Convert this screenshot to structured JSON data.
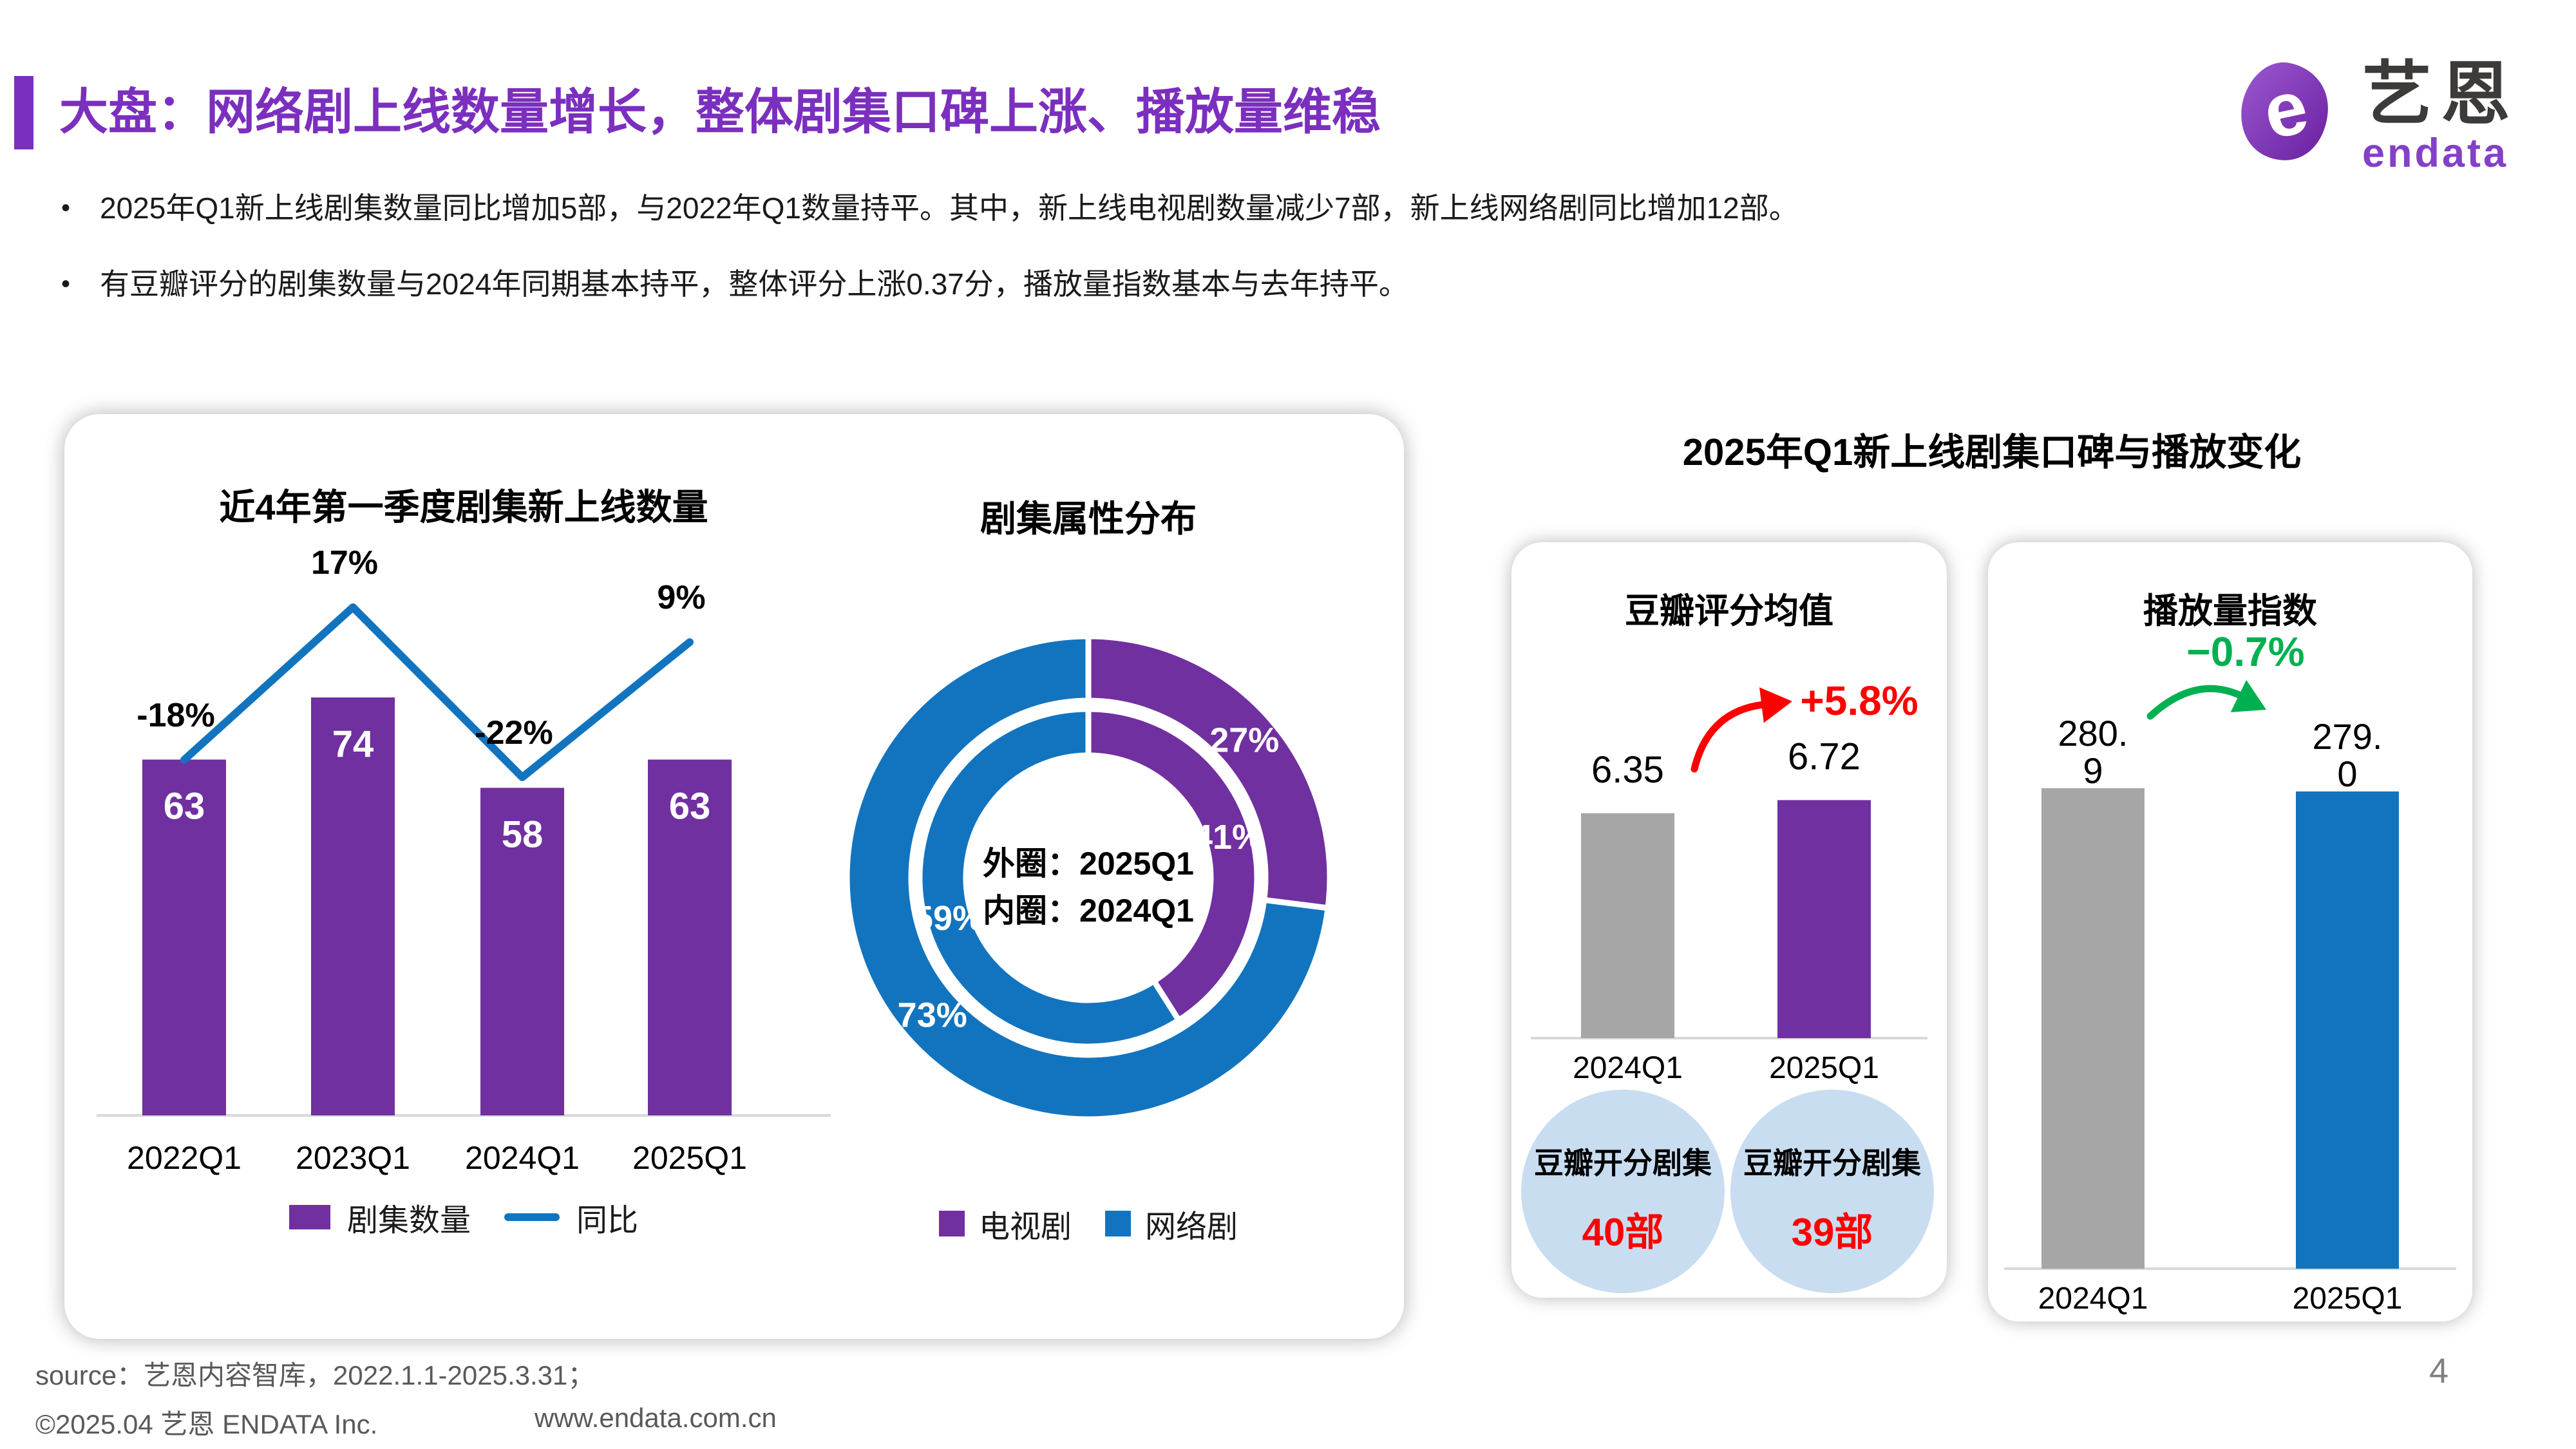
{
  "page": {
    "title": "大盘：网络剧上线数量增长，整体剧集口碑上涨、播放量维稳",
    "page_number": "4"
  },
  "logo": {
    "zh": "艺恩",
    "en": "endata"
  },
  "bullets": [
    "2025年Q1新上线剧集数量同比增加5部，与2022年Q1数量持平。其中，新上线电视剧数量减少7部，新上线网络剧同比增加12部。",
    "有豆瓣评分的剧集数量与2024年同期基本持平，整体评分上涨0.37分，播放量指数基本与去年持平。"
  ],
  "right_section": {
    "title": "2025年Q1新上线剧集口碑与播放变化"
  },
  "footer": {
    "source": "source：艺恩内容智库，2022.1.1-2025.3.31；",
    "copyright": "©2025.04 艺恩 ENDATA Inc.",
    "website": "www.endata.com.cn"
  },
  "colors": {
    "purple": "#7030A0",
    "purple_bright": "#7B2FBE",
    "blue": "#1274BF",
    "gray": "#A6A6A6",
    "red": "#FF0000",
    "green": "#00B050",
    "circle_blue": "#C9DDF1",
    "axis": "#D9D9D9",
    "text_gray": "#595959"
  },
  "chart_data": [
    {
      "id": "launch_combo",
      "type": "bar",
      "title": "近4年第一季度剧集新上线数量",
      "categories": [
        "2022Q1",
        "2023Q1",
        "2024Q1",
        "2025Q1"
      ],
      "series": [
        {
          "name": "剧集数量",
          "type": "bar",
          "values": [
            63,
            74,
            58,
            63
          ],
          "value_labels": [
            "63",
            "74",
            "58",
            "63"
          ]
        },
        {
          "name": "同比",
          "type": "line",
          "values_pct": [
            -18,
            17,
            -22,
            9
          ],
          "labels": [
            "-18%",
            "17%",
            "-22%",
            "9%"
          ]
        }
      ],
      "legend": [
        "剧集数量",
        "同比"
      ],
      "ylim": [
        0,
        80
      ],
      "grid": false,
      "legend_position": "bottom"
    },
    {
      "id": "attribute_donut",
      "type": "pie",
      "title": "剧集属性分布",
      "rings": [
        {
          "name": "外圈",
          "period": "2025Q1",
          "slices": [
            {
              "label": "电视剧",
              "pct": 27,
              "text": "27%"
            },
            {
              "label": "网络剧",
              "pct": 73,
              "text": "73%"
            }
          ]
        },
        {
          "name": "内圈",
          "period": "2024Q1",
          "slices": [
            {
              "label": "电视剧",
              "pct": 41,
              "text": "41%"
            },
            {
              "label": "网络剧",
              "pct": 59,
              "text": "59%"
            }
          ]
        }
      ],
      "center_lines": [
        "外圈：2025Q1",
        "内圈：2024Q1"
      ],
      "legend": [
        "电视剧",
        "网络剧"
      ],
      "legend_position": "bottom"
    },
    {
      "id": "douban_score",
      "type": "bar",
      "title": "豆瓣评分均值",
      "categories": [
        "2024Q1",
        "2025Q1"
      ],
      "values": [
        6.35,
        6.72
      ],
      "value_labels": [
        [
          "6.35"
        ],
        [
          "6.72"
        ]
      ],
      "bar_colors": [
        "gray",
        "purple"
      ],
      "change": "+5.8%",
      "change_color": "red",
      "badges": [
        {
          "label": "豆瓣开分剧集",
          "value": "40部"
        },
        {
          "label": "豆瓣开分剧集",
          "value": "39部"
        }
      ]
    },
    {
      "id": "playback_index",
      "type": "bar",
      "title": "播放量指数",
      "categories": [
        "2024Q1",
        "2025Q1"
      ],
      "values": [
        280.9,
        279.0
      ],
      "value_labels": [
        [
          "280.",
          "9"
        ],
        [
          "279.",
          "0"
        ]
      ],
      "bar_colors": [
        "gray",
        "blue"
      ],
      "change": "−0.7%",
      "change_color": "green"
    }
  ]
}
